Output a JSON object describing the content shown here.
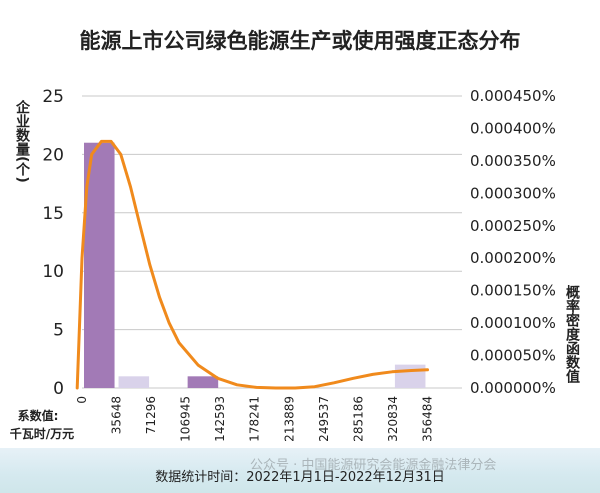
{
  "chart_data": {
    "type": "bar",
    "title": "能源上市公司绿色能源生产或使用强度正态分布",
    "ylabel_left": "企业数量(个)",
    "ylabel_right": "概率密度函数值",
    "xlabel": "系数值:千瓦时/万元",
    "footnote": "数据统计时间：2022年1月1日-2022年12月31日",
    "watermark": "公众号 · 中国能源研究会能源金融法律分会",
    "x_ticks": [
      "0",
      "35648",
      "71296",
      "106945",
      "142593",
      "178241",
      "213889",
      "249537",
      "285186",
      "320834",
      "356484"
    ],
    "left_axis": {
      "ylim": [
        0,
        25
      ],
      "ticks": [
        "0",
        "5",
        "10",
        "15",
        "20",
        "25"
      ]
    },
    "right_axis": {
      "ylim": [
        0,
        4.5e-06
      ],
      "ticks": [
        "0.000000%",
        "0.000050%",
        "0.000100%",
        "0.000150%",
        "0.000200%",
        "0.000250%",
        "0.000300%",
        "0.000350%",
        "0.000400%",
        "0.000450%"
      ]
    },
    "series": [
      {
        "kind": "bar",
        "bins": [
          {
            "from": 0,
            "to": 35648,
            "value": 21
          },
          {
            "from": 35648,
            "to": 71296,
            "value": 1
          },
          {
            "from": 106945,
            "to": 142593,
            "value": 1
          },
          {
            "from": 320834,
            "to": 356484,
            "value": 2
          }
        ]
      },
      {
        "kind": "line",
        "x": [
          -5000,
          0,
          5000,
          10000,
          20000,
          30000,
          40000,
          50000,
          60000,
          70000,
          80000,
          90000,
          100000,
          120000,
          140000,
          160000,
          180000,
          200000,
          220000,
          240000,
          260000,
          280000,
          300000,
          320000,
          340000,
          356484
        ],
        "y": [
          0.0,
          2e-06,
          3.1e-06,
          3.6e-06,
          3.8e-06,
          3.8e-06,
          3.6e-06,
          3.1e-06,
          2.5e-06,
          1.9e-06,
          1.4e-06,
          1e-06,
          7e-07,
          3.5e-07,
          1.5e-07,
          5e-08,
          1e-08,
          0.0,
          0.0,
          2e-08,
          8e-08,
          1.5e-07,
          2.1e-07,
          2.5e-07,
          2.7e-07,
          2.8e-07
        ]
      }
    ],
    "colors": {
      "bar_main": "#a27ab6",
      "bar_light": "#d9d2ea",
      "line": "#f08a1c",
      "grid": "#c9c9c9",
      "text": "#222222"
    }
  }
}
